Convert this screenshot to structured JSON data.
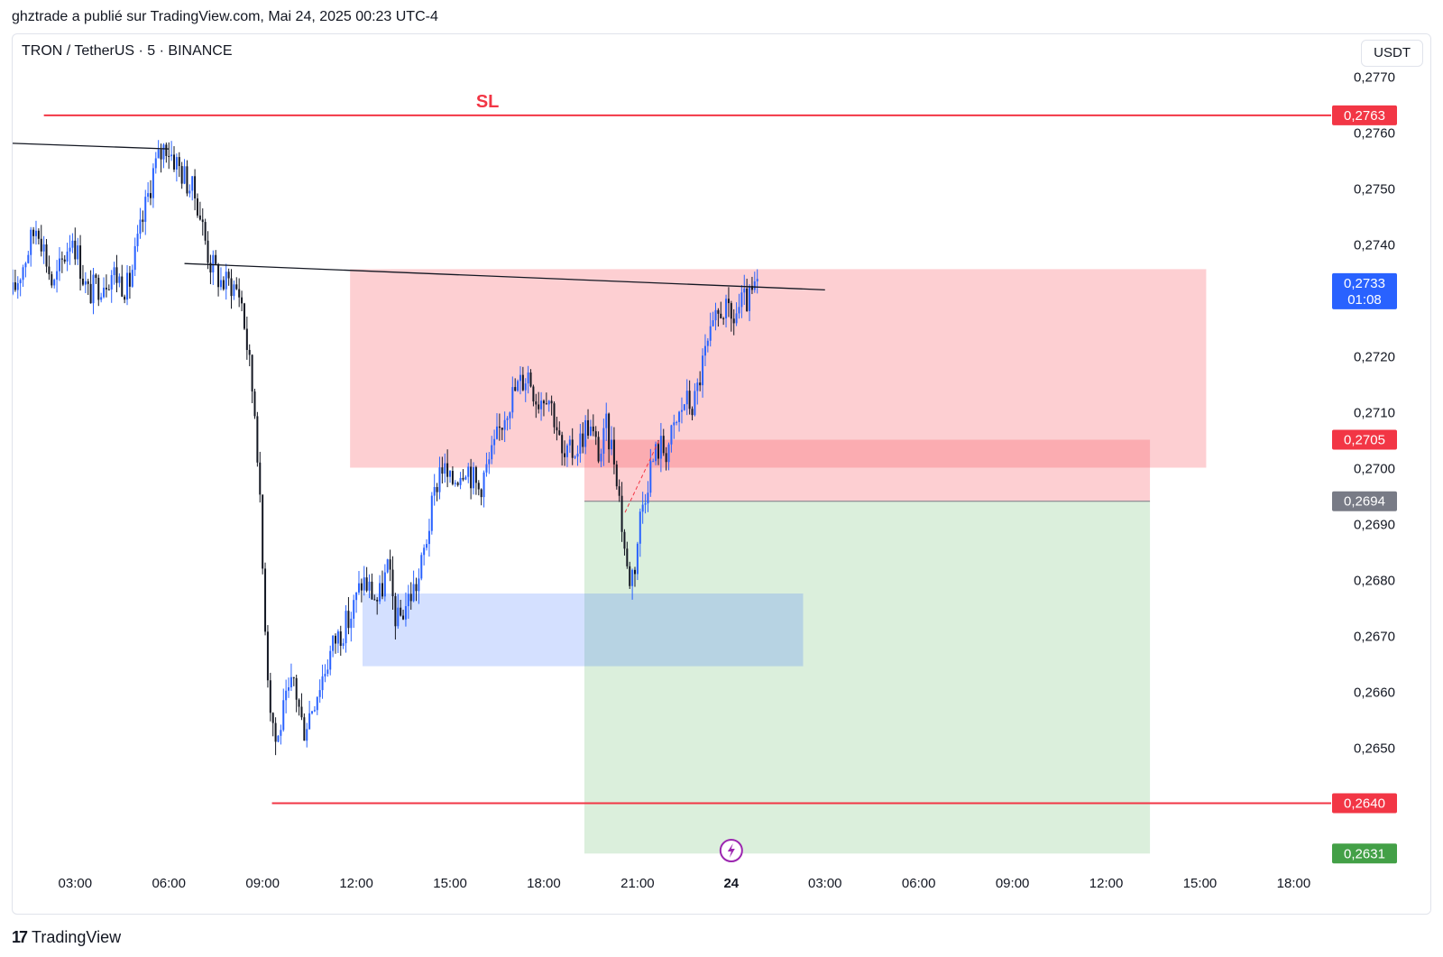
{
  "header": {
    "text": "ghztrade a publié sur TradingView.com, Mai 24, 2025 00:23 UTC-4"
  },
  "symbol": {
    "title": "TRON / TetherUS · 5 · BINANCE"
  },
  "currency_button": {
    "label": "USDT"
  },
  "footer": {
    "logo_mark": "17",
    "logo_text": "TradingView"
  },
  "colors": {
    "up": "#2962ff",
    "down": "#131722",
    "stop_line": "#f23645",
    "risk_zone": "rgba(247,82,95,0.28)",
    "target_zone": "rgba(76,175,80,0.20)",
    "demand_zone": "rgba(41,98,255,0.20)",
    "current_price_bg": "#2962ff",
    "entry_bg": "#787b86",
    "target_bg": "#43a047"
  },
  "chart_data": {
    "type": "candlestick",
    "symbol": "TRON / TetherUS",
    "interval": "5",
    "exchange": "BINANCE",
    "ylim": [
      0.26275,
      0.27775
    ],
    "y_ticks": [
      "0,2770",
      "0,2760",
      "0,2750",
      "0,2740",
      "0,2720",
      "0,2710",
      "0,2700",
      "0,2690",
      "0,2680",
      "0,2670",
      "0,2660",
      "0,2650"
    ],
    "x_ticks": [
      "03:00",
      "06:00",
      "09:00",
      "12:00",
      "15:00",
      "18:00",
      "21:00",
      "24",
      "03:00",
      "06:00",
      "09:00",
      "12:00",
      "15:00",
      "18:00"
    ],
    "x_range_hours": [
      1.0,
      43.2
    ],
    "price_path": [
      [
        1.0,
        0.2731
      ],
      [
        1.8,
        0.2744
      ],
      [
        2.3,
        0.2732
      ],
      [
        2.9,
        0.2742
      ],
      [
        3.4,
        0.2731
      ],
      [
        4.2,
        0.2735
      ],
      [
        4.7,
        0.2732
      ],
      [
        5.5,
        0.2753
      ],
      [
        5.9,
        0.2758
      ],
      [
        6.5,
        0.2752
      ],
      [
        6.9,
        0.2748
      ],
      [
        7.3,
        0.2737
      ],
      [
        7.7,
        0.2733
      ],
      [
        8.0,
        0.2733
      ],
      [
        8.3,
        0.2731
      ],
      [
        8.5,
        0.2722
      ],
      [
        8.8,
        0.2708
      ],
      [
        9.0,
        0.2682
      ],
      [
        9.2,
        0.266
      ],
      [
        9.45,
        0.265
      ],
      [
        9.6,
        0.2655
      ],
      [
        10.0,
        0.2662
      ],
      [
        10.3,
        0.2653
      ],
      [
        10.8,
        0.2661
      ],
      [
        11.3,
        0.2669
      ],
      [
        11.8,
        0.2673
      ],
      [
        12.2,
        0.268
      ],
      [
        12.7,
        0.2676
      ],
      [
        13.0,
        0.2682
      ],
      [
        13.3,
        0.2672
      ],
      [
        13.7,
        0.2677
      ],
      [
        14.0,
        0.268
      ],
      [
        14.3,
        0.2689
      ],
      [
        14.7,
        0.2701
      ],
      [
        15.0,
        0.2697
      ],
      [
        15.5,
        0.2701
      ],
      [
        15.9,
        0.2696
      ],
      [
        16.4,
        0.2703
      ],
      [
        16.8,
        0.2711
      ],
      [
        17.1,
        0.2714
      ],
      [
        17.5,
        0.2717
      ],
      [
        17.8,
        0.2712
      ],
      [
        18.1,
        0.2714
      ],
      [
        18.4,
        0.2708
      ],
      [
        18.6,
        0.2701
      ],
      [
        19.1,
        0.2704
      ],
      [
        19.4,
        0.2708
      ],
      [
        19.8,
        0.2702
      ],
      [
        20.0,
        0.2707
      ],
      [
        20.3,
        0.2701
      ],
      [
        20.5,
        0.269
      ],
      [
        20.7,
        0.268
      ],
      [
        20.9,
        0.2682
      ],
      [
        21.1,
        0.2692
      ],
      [
        21.4,
        0.27
      ],
      [
        21.7,
        0.2704
      ],
      [
        21.9,
        0.2703
      ],
      [
        22.2,
        0.2707
      ],
      [
        22.5,
        0.2712
      ],
      [
        22.8,
        0.2711
      ],
      [
        23.1,
        0.2719
      ],
      [
        23.4,
        0.2724
      ],
      [
        23.7,
        0.2729
      ],
      [
        24.0,
        0.2726
      ],
      [
        24.3,
        0.2729
      ],
      [
        24.6,
        0.273
      ],
      [
        24.9,
        0.2733
      ]
    ],
    "levels": [
      {
        "name": "SL",
        "price": 0.2763,
        "label": "0,2763",
        "color": "#f23645",
        "x_from": 2.0
      },
      {
        "name": "",
        "price": 0.264,
        "label": "0,2640",
        "color": "#f23645",
        "x_from": 9.3
      }
    ],
    "sl_text": "SL",
    "trendlines": [
      {
        "from": [
          1.0,
          0.2758
        ],
        "to": [
          6.0,
          0.2757
        ]
      },
      {
        "from": [
          6.5,
          0.27365
        ],
        "to": [
          27.0,
          0.27318
        ]
      }
    ],
    "zones": [
      {
        "kind": "risk",
        "x_from": 11.8,
        "x_to": 39.2,
        "y_from": 0.27,
        "y_to": 0.27355
      },
      {
        "kind": "demand",
        "x_from": 12.2,
        "x_to": 26.3,
        "y_from": 0.26645,
        "y_to": 0.26775
      }
    ],
    "position": {
      "type": "short",
      "x_from": 19.3,
      "x_to": 37.4,
      "entry": 0.2694,
      "stop": 0.2705,
      "target": 0.2631,
      "entry_label": "0,2694",
      "stop_label": "0,2705",
      "target_label": "0,2631"
    },
    "current_price": {
      "price": 0.2733,
      "label": "0,2733",
      "countdown": "01:08"
    }
  }
}
